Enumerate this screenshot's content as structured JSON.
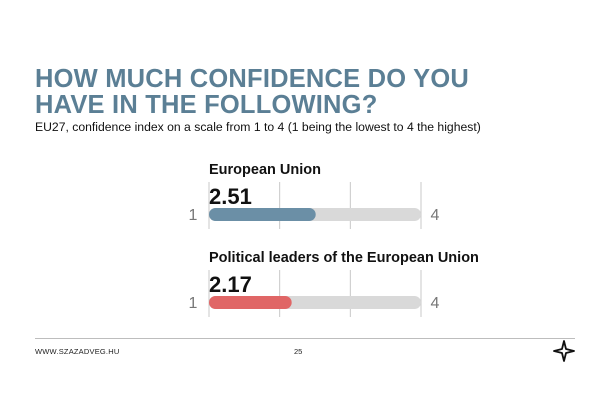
{
  "slide": {
    "title_lines": [
      "HOW MUCH CONFIDENCE DO YOU",
      "HAVE IN THE FOLLOWING?"
    ],
    "subtitle": "EU27, confidence index on a scale from 1 to 4 (1 being the lowest to 4 the highest)",
    "footer_url": "WWW.SZAZADVEG.HU",
    "page_number": "25",
    "logo_icon": "star-logo-icon"
  },
  "chart_data": {
    "type": "bar",
    "orientation": "horizontal",
    "scale_min": 1,
    "scale_max": 4,
    "min_label": "1",
    "max_label": "4",
    "grid": true,
    "track_color": "#d9d9d9",
    "series": [
      {
        "category": "European Union",
        "value": 2.51,
        "value_label": "2.51",
        "color": "#6b8fa6"
      },
      {
        "category": "Political leaders of the European Union",
        "value": 2.17,
        "value_label": "2.17",
        "color": "#e06666"
      }
    ]
  }
}
